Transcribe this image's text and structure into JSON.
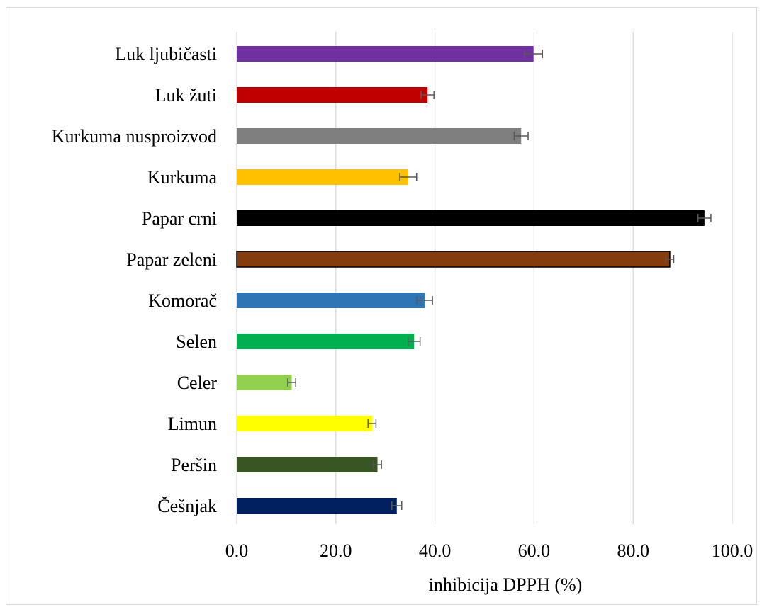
{
  "chart_data": {
    "type": "bar",
    "orientation": "horizontal",
    "categories": [
      "Luk ljubičasti",
      "Luk žuti",
      "Kurkuma nusproizvod",
      "Kurkuma",
      "Papar crni",
      "Papar zeleni",
      "Komorač",
      "Selen",
      "Celer",
      "Limun",
      "Peršin",
      "Češnjak"
    ],
    "values": [
      59.9,
      38.5,
      57.4,
      34.6,
      94.4,
      87.4,
      37.9,
      35.8,
      11.1,
      27.3,
      28.4,
      32.3
    ],
    "errors": [
      1.8,
      1.3,
      1.4,
      1.7,
      1.3,
      0.8,
      1.6,
      1.2,
      0.8,
      0.8,
      0.8,
      1.0
    ],
    "colors": [
      "#7030a0",
      "#c00000",
      "#7f7f7f",
      "#ffc000",
      "#000000",
      "#843c0c",
      "#2e75b6",
      "#00b050",
      "#92d050",
      "#ffff00",
      "#375623",
      "#002060"
    ],
    "bar_outline": [
      null,
      null,
      null,
      null,
      null,
      "#000000",
      null,
      null,
      null,
      null,
      null,
      null
    ],
    "xlim": [
      0,
      100
    ],
    "xticks": [
      "0.0",
      "20.0",
      "40.0",
      "60.0",
      "80.0",
      "100.0"
    ],
    "xlabel": "inhibicija DPPH (%)",
    "ylabel": "",
    "title": "",
    "grid": "vertical",
    "legend": "none"
  }
}
